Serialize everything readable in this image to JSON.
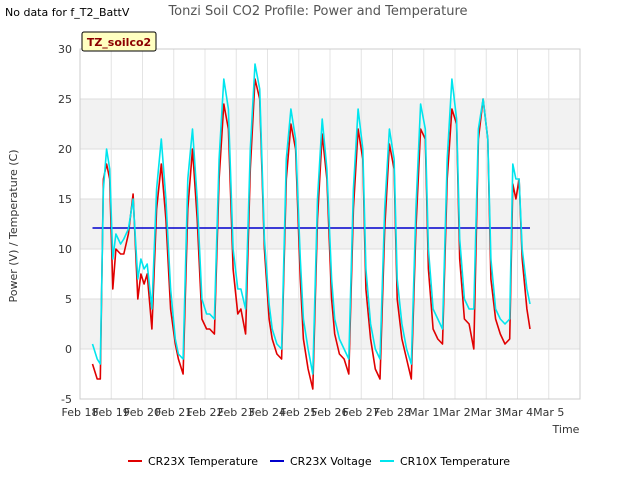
{
  "no_data_note": "No data for f_T2_BattV",
  "site_label": "TZ_soilco2",
  "colors": {
    "cr23x_temperature": "#e00000",
    "cr23x_voltage": "#0000cc",
    "cr10x_temperature": "#00e5ee",
    "band": "#f2f2f2",
    "site_box_fill": "#ffffc0",
    "site_box_text": "#8b0000"
  },
  "chart_data": {
    "type": "line",
    "title": "Tonzi Soil CO2 Profile: Power and Temperature",
    "xlabel": "Time",
    "ylabel": "Power (V) / Temperature (C)",
    "xlim": [
      0,
      16
    ],
    "ylim": [
      -5,
      30
    ],
    "x_ticks": [
      {
        "pos": 0,
        "label": "Feb 18"
      },
      {
        "pos": 1,
        "label": "Feb 19"
      },
      {
        "pos": 2,
        "label": "Feb 20"
      },
      {
        "pos": 3,
        "label": "Feb 21"
      },
      {
        "pos": 4,
        "label": "Feb 22"
      },
      {
        "pos": 5,
        "label": "Feb 23"
      },
      {
        "pos": 6,
        "label": "Feb 24"
      },
      {
        "pos": 7,
        "label": "Feb 25"
      },
      {
        "pos": 8,
        "label": "Feb 26"
      },
      {
        "pos": 9,
        "label": "Feb 27"
      },
      {
        "pos": 10,
        "label": "Feb 28"
      },
      {
        "pos": 11,
        "label": "Mar 1"
      },
      {
        "pos": 12,
        "label": "Mar 2"
      },
      {
        "pos": 13,
        "label": "Mar 3"
      },
      {
        "pos": 14,
        "label": "Mar 4"
      },
      {
        "pos": 15,
        "label": "Mar 5"
      }
    ],
    "y_ticks": [
      -5,
      0,
      5,
      10,
      15,
      20,
      25,
      30
    ],
    "grid": true,
    "legend_position": "bottom",
    "series": [
      {
        "name": "CR23X Temperature",
        "color": "#e00000",
        "x": [
          0.4,
          0.55,
          0.65,
          0.75,
          0.85,
          0.95,
          1.05,
          1.15,
          1.3,
          1.4,
          1.55,
          1.7,
          1.85,
          1.95,
          2.05,
          2.15,
          2.3,
          2.45,
          2.6,
          2.75,
          2.9,
          3.05,
          3.15,
          3.3,
          3.45,
          3.6,
          3.75,
          3.9,
          4.05,
          4.15,
          4.3,
          4.45,
          4.6,
          4.75,
          4.9,
          5.05,
          5.15,
          5.3,
          5.45,
          5.6,
          5.75,
          5.9,
          6.05,
          6.15,
          6.3,
          6.45,
          6.6,
          6.75,
          6.9,
          7.05,
          7.15,
          7.3,
          7.45,
          7.6,
          7.75,
          7.9,
          8.05,
          8.15,
          8.3,
          8.45,
          8.6,
          8.75,
          8.9,
          9.05,
          9.15,
          9.3,
          9.45,
          9.6,
          9.75,
          9.9,
          10.05,
          10.15,
          10.3,
          10.45,
          10.6,
          10.75,
          10.9,
          11.05,
          11.15,
          11.3,
          11.45,
          11.6,
          11.75,
          11.9,
          12.05,
          12.15,
          12.3,
          12.45,
          12.6,
          12.75,
          12.9,
          13.05,
          13.15,
          13.3,
          13.45,
          13.6,
          13.75,
          13.85,
          13.95,
          14.05,
          14.15,
          14.3,
          14.4
        ],
        "values": [
          -1.5,
          -3,
          -3,
          17,
          18.5,
          17,
          6,
          10,
          9.5,
          9.5,
          11.5,
          15.5,
          5,
          7.5,
          6.5,
          7.5,
          2,
          14,
          18.5,
          13,
          4,
          0.5,
          -1,
          -2.5,
          14,
          20,
          13,
          3,
          2,
          2,
          1.5,
          17,
          24.5,
          22,
          8,
          3.5,
          4,
          1.5,
          18,
          27,
          25,
          10,
          3,
          1,
          -0.5,
          -1,
          17,
          22.5,
          20,
          7,
          1,
          -2,
          -4,
          13,
          21.5,
          17,
          5,
          1.5,
          -0.5,
          -1,
          -2.5,
          14,
          22,
          19,
          6,
          1,
          -2,
          -3,
          12,
          20.5,
          18,
          5,
          1,
          -1,
          -3,
          12,
          22,
          21,
          8,
          2,
          1,
          0.5,
          17,
          24,
          22.5,
          9,
          3,
          2.5,
          0,
          21,
          25,
          21,
          7,
          3,
          1.5,
          0.5,
          1,
          16.5,
          15,
          17,
          9,
          4,
          2
        ]
      },
      {
        "name": "CR23X Voltage",
        "color": "#0000cc",
        "x": [
          0.4,
          14.4
        ],
        "values": [
          12.1,
          12.1
        ]
      },
      {
        "name": "CR10X Temperature",
        "color": "#00e5ee",
        "x": [
          0.4,
          0.55,
          0.65,
          0.75,
          0.85,
          0.95,
          1.05,
          1.15,
          1.3,
          1.4,
          1.55,
          1.7,
          1.85,
          1.95,
          2.05,
          2.15,
          2.3,
          2.45,
          2.6,
          2.75,
          2.9,
          3.05,
          3.15,
          3.3,
          3.45,
          3.6,
          3.75,
          3.9,
          4.05,
          4.15,
          4.3,
          4.45,
          4.6,
          4.75,
          4.9,
          5.05,
          5.15,
          5.3,
          5.45,
          5.6,
          5.75,
          5.9,
          6.05,
          6.15,
          6.3,
          6.45,
          6.6,
          6.75,
          6.9,
          7.05,
          7.15,
          7.3,
          7.45,
          7.6,
          7.75,
          7.9,
          8.05,
          8.15,
          8.3,
          8.45,
          8.6,
          8.75,
          8.9,
          9.05,
          9.15,
          9.3,
          9.45,
          9.6,
          9.75,
          9.9,
          10.05,
          10.15,
          10.3,
          10.45,
          10.6,
          10.75,
          10.9,
          11.05,
          11.15,
          11.3,
          11.45,
          11.6,
          11.75,
          11.9,
          12.05,
          12.15,
          12.3,
          12.45,
          12.6,
          12.75,
          12.9,
          13.05,
          13.15,
          13.3,
          13.45,
          13.6,
          13.75,
          13.85,
          13.95,
          14.05,
          14.15,
          14.3,
          14.4
        ],
        "values": [
          0.5,
          -1,
          -1.5,
          16,
          20,
          18,
          9,
          11.5,
          10.5,
          11,
          12,
          15,
          7,
          9,
          8,
          8.5,
          4,
          16,
          21,
          15,
          6,
          1,
          -0.5,
          -1,
          17,
          22,
          15,
          5,
          3.5,
          3.5,
          3,
          19,
          27,
          24,
          10,
          6,
          6,
          4,
          20,
          28.5,
          26,
          11,
          4.5,
          2,
          0.5,
          0,
          19,
          24,
          21,
          9,
          3,
          0,
          -2.5,
          15,
          23,
          18,
          7,
          3,
          1,
          0,
          -1,
          16,
          24,
          20,
          8,
          2.5,
          0,
          -1,
          14,
          22,
          19,
          7,
          2.5,
          0,
          -1.5,
          14,
          24.5,
          22,
          10,
          4,
          3,
          2,
          19,
          27,
          23,
          11,
          5,
          4,
          4,
          22,
          25,
          21,
          9,
          4,
          3,
          2.5,
          3,
          18.5,
          17,
          17,
          10,
          6,
          4.5
        ]
      }
    ]
  }
}
